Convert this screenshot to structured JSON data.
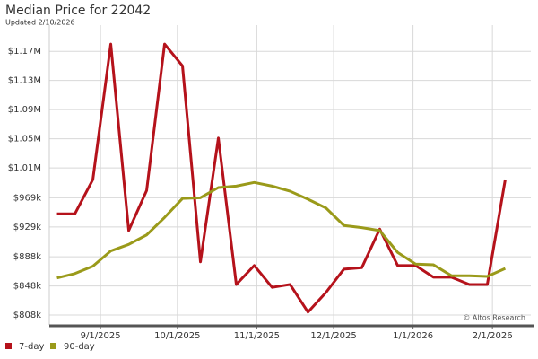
{
  "chart_data": {
    "type": "line",
    "title": "Median Price for 22042",
    "subtitle": "Updated 2/10/2026",
    "watermark": "© Altos Research",
    "x": [
      "2025-08-15",
      "2025-08-22",
      "2025-08-29",
      "2025-09-05",
      "2025-09-12",
      "2025-09-19",
      "2025-09-26",
      "2025-10-03",
      "2025-10-10",
      "2025-10-17",
      "2025-10-24",
      "2025-10-31",
      "2025-11-07",
      "2025-11-14",
      "2025-11-21",
      "2025-11-28",
      "2025-12-05",
      "2025-12-12",
      "2025-12-19",
      "2025-12-26",
      "2026-01-02",
      "2026-01-09",
      "2026-01-16",
      "2026-01-23",
      "2026-01-30",
      "2026-02-06"
    ],
    "series": [
      {
        "name": "7-day",
        "color": "#b5121b",
        "values": [
          947000,
          947000,
          994000,
          1180000,
          924000,
          979000,
          1180000,
          1150000,
          881000,
          1051000,
          850000,
          876000,
          846000,
          850000,
          812000,
          839000,
          871000,
          873000,
          926000,
          876000,
          876000,
          860000,
          860000,
          850000,
          850000,
          994000
        ]
      },
      {
        "name": "90-day",
        "color": "#9a9a1a",
        "values": [
          859000,
          865000,
          875000,
          896000,
          905000,
          918000,
          942000,
          968000,
          969000,
          983000,
          985000,
          990000,
          985000,
          978000,
          967000,
          955000,
          931000,
          928000,
          924000,
          894000,
          878000,
          877000,
          862000,
          862000,
          861000,
          872000
        ]
      }
    ],
    "xlim": [
      "2025-08-12",
      "2026-02-16"
    ],
    "xticks": [
      {
        "value": "2025-09-01",
        "label": "9/1/2025"
      },
      {
        "value": "2025-10-01",
        "label": "10/1/2025"
      },
      {
        "value": "2025-11-01",
        "label": "11/1/2025"
      },
      {
        "value": "2025-12-01",
        "label": "12/1/2025"
      },
      {
        "value": "2026-01-01",
        "label": "1/1/2026"
      },
      {
        "value": "2026-02-01",
        "label": "2/1/2026"
      }
    ],
    "ylim": [
      794500,
      1206000
    ],
    "yticks": [
      {
        "value": 808000,
        "label": "$808k"
      },
      {
        "value": 848000,
        "label": "$848k"
      },
      {
        "value": 888000,
        "label": "$888k"
      },
      {
        "value": 929000,
        "label": "$929k"
      },
      {
        "value": 969000,
        "label": "$969k"
      },
      {
        "value": 1010000,
        "label": "$1.01M"
      },
      {
        "value": 1050000,
        "label": "$1.05M"
      },
      {
        "value": 1090000,
        "label": "$1.09M"
      },
      {
        "value": 1130000,
        "label": "$1.13M"
      },
      {
        "value": 1170000,
        "label": "$1.17M"
      }
    ],
    "grid": true
  }
}
